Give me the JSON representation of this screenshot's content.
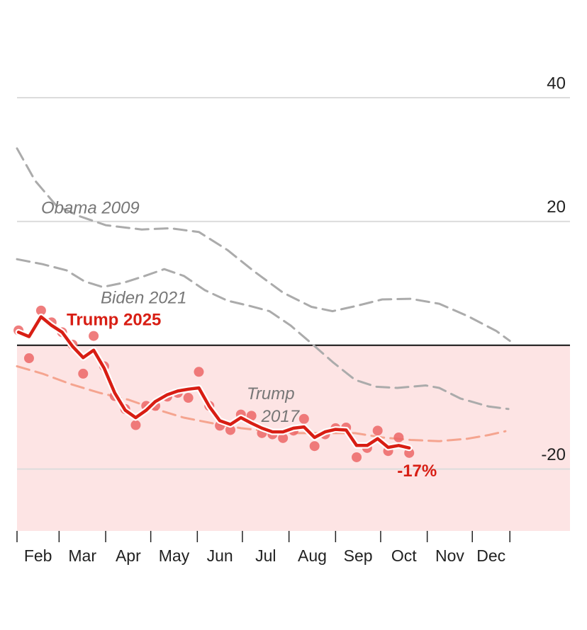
{
  "chart_data": {
    "type": "line",
    "xlim": [
      0,
      368
    ],
    "xticks": [
      0,
      28,
      59,
      89,
      120,
      150,
      181,
      212,
      242,
      273,
      303,
      328
    ],
    "categories": [
      "Feb",
      "Mar",
      "Apr",
      "May",
      "Jun",
      "Jul",
      "Aug",
      "Sep",
      "Oct",
      "Nov",
      "Dec"
    ],
    "ylim": [
      -30,
      45
    ],
    "yticks": [
      40,
      20,
      -20
    ],
    "grid": true,
    "series": [
      {
        "name": "Obama 2009",
        "color": "#ababab",
        "style": "dashed",
        "x": [
          0,
          12,
          26,
          41,
          59,
          83,
          102,
          121,
          140,
          158,
          177,
          196,
          210,
          225,
          243,
          262,
          281,
          300,
          319,
          328
        ],
        "values": [
          31.8,
          26.6,
          22.6,
          20.9,
          19.4,
          18.7,
          18.9,
          18.3,
          15.4,
          11.9,
          8.5,
          6.2,
          5.5,
          6.3,
          7.4,
          7.5,
          6.7,
          4.7,
          2.3,
          0.7
        ]
      },
      {
        "name": "Biden 2021",
        "color": "#ababab",
        "style": "dashed",
        "x": [
          0,
          17,
          33,
          45,
          57,
          71,
          85,
          98,
          111,
          125,
          140,
          154,
          168,
          182,
          196,
          210,
          225,
          239,
          253,
          272,
          281,
          295,
          314,
          327
        ],
        "values": [
          13.9,
          13.1,
          12.1,
          10.3,
          9.4,
          10.1,
          11.2,
          12.3,
          11.2,
          8.9,
          7.2,
          6.4,
          5.5,
          3.2,
          0.3,
          -2.7,
          -5.6,
          -6.7,
          -6.9,
          -6.5,
          -6.9,
          -8.6,
          -9.9,
          -10.3
        ]
      },
      {
        "name": "Trump 2017",
        "color": "#f5a48f",
        "style": "dashed",
        "x": [
          0,
          17,
          36,
          55,
          74,
          92,
          111,
          130,
          149,
          168,
          187,
          206,
          225,
          243,
          262,
          281,
          300,
          314,
          325
        ],
        "values": [
          -3.4,
          -4.6,
          -6.3,
          -7.7,
          -8.8,
          -10.3,
          -11.7,
          -12.6,
          -13.4,
          -13.9,
          -14.2,
          -14.2,
          -14.2,
          -14.9,
          -15.3,
          -15.5,
          -15.1,
          -14.5,
          -13.9
        ]
      },
      {
        "color": "#ec6666",
        "style": "dots",
        "x": [
          1,
          8,
          16,
          23,
          30,
          37,
          44,
          51,
          58,
          65,
          72,
          79,
          86,
          92,
          100,
          107,
          114,
          121,
          128,
          135,
          142,
          149,
          156,
          163,
          170,
          177,
          184,
          191,
          198,
          205,
          212,
          219,
          226,
          233,
          240,
          247,
          254,
          261
        ],
        "values": [
          2.4,
          -2.1,
          5.6,
          3.7,
          2.1,
          0.1,
          -4.6,
          1.5,
          -3.4,
          -8.2,
          -10.3,
          -12.9,
          -9.8,
          -9.8,
          -8.3,
          -7.7,
          -8.5,
          -4.3,
          -9.8,
          -13.0,
          -13.7,
          -11.2,
          -11.4,
          -14.2,
          -14.4,
          -15.0,
          -13.8,
          -11.9,
          -16.3,
          -14.4,
          -13.4,
          -13.3,
          -18.1,
          -16.6,
          -13.8,
          -17.1,
          -14.9,
          -17.4
        ]
      },
      {
        "name": "Trump 2025",
        "color": "#d81e14",
        "style": "solid",
        "x": [
          1,
          8,
          16,
          23,
          30,
          37,
          44,
          51,
          58,
          65,
          72,
          79,
          86,
          92,
          100,
          107,
          114,
          121,
          128,
          135,
          142,
          149,
          156,
          163,
          170,
          177,
          184,
          191,
          198,
          205,
          212,
          219,
          226,
          233,
          240,
          247,
          254,
          261
        ],
        "values": [
          2.1,
          1.4,
          4.6,
          3.2,
          2.1,
          -0.2,
          -2.0,
          -0.8,
          -3.7,
          -7.7,
          -10.5,
          -11.7,
          -10.5,
          -9.1,
          -8.0,
          -7.4,
          -7.1,
          -6.9,
          -9.9,
          -12.2,
          -12.8,
          -11.7,
          -12.6,
          -13.4,
          -14.0,
          -14.0,
          -13.4,
          -13.2,
          -14.9,
          -14.0,
          -13.6,
          -13.7,
          -16.2,
          -16.2,
          -15.1,
          -16.5,
          -16.2,
          -16.6
        ],
        "value_labels": [
          null,
          null,
          null,
          null,
          null,
          null,
          null,
          null,
          null,
          null,
          null,
          null,
          null,
          null,
          null,
          null,
          null,
          null,
          null,
          null,
          null,
          null,
          null,
          null,
          null,
          null,
          null,
          null,
          null,
          null,
          null,
          null,
          null,
          null,
          null,
          null,
          null,
          "-17%"
        ]
      }
    ]
  }
}
